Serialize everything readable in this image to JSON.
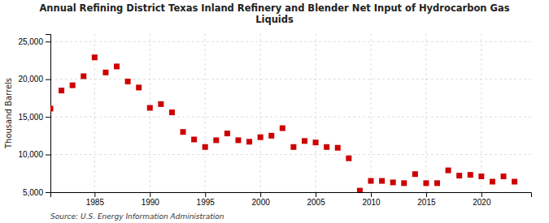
{
  "chart_data": {
    "type": "scatter",
    "title": "Annual Refining District Texas Inland Refinery and Blender Net Input of Hydrocarbon Gas\nLiquids",
    "y_label": "Thousand Barrels",
    "source": "Source: U.S. Energy Information Administration",
    "color": "#cc0000",
    "marker": "square",
    "grid": true,
    "xlim": [
      1981.0,
      2024.5
    ],
    "ylim": [
      5000,
      26000
    ],
    "xticks": [
      1985,
      1990,
      1995,
      2000,
      2005,
      2010,
      2015,
      2020
    ],
    "yticks": [
      {
        "value": 5000,
        "label": "5,000"
      },
      {
        "value": 10000,
        "label": "10,000"
      },
      {
        "value": 15000,
        "label": "15,000"
      },
      {
        "value": 20000,
        "label": "20,000"
      },
      {
        "value": 25000,
        "label": "25,000"
      }
    ],
    "x": [
      1981,
      1982,
      1983,
      1984,
      1985,
      1986,
      1987,
      1988,
      1989,
      1990,
      1991,
      1992,
      1993,
      1994,
      1995,
      1996,
      1997,
      1998,
      1999,
      2000,
      2001,
      2002,
      2003,
      2004,
      2005,
      2006,
      2007,
      2008,
      2009,
      2010,
      2011,
      2012,
      2013,
      2014,
      2015,
      2016,
      2017,
      2018,
      2019,
      2020,
      2021,
      2022,
      2023
    ],
    "values": [
      16100,
      18500,
      19200,
      20400,
      22900,
      20900,
      21700,
      19700,
      18900,
      16200,
      16700,
      15600,
      13000,
      12000,
      11000,
      11900,
      12800,
      11900,
      11700,
      12300,
      12500,
      13500,
      11000,
      11800,
      11600,
      11000,
      10900,
      9500,
      5200,
      6500,
      6500,
      6300,
      6200,
      7400,
      6200,
      6200,
      7900,
      7200,
      7300,
      7100,
      6400,
      7100,
      6400
    ]
  }
}
